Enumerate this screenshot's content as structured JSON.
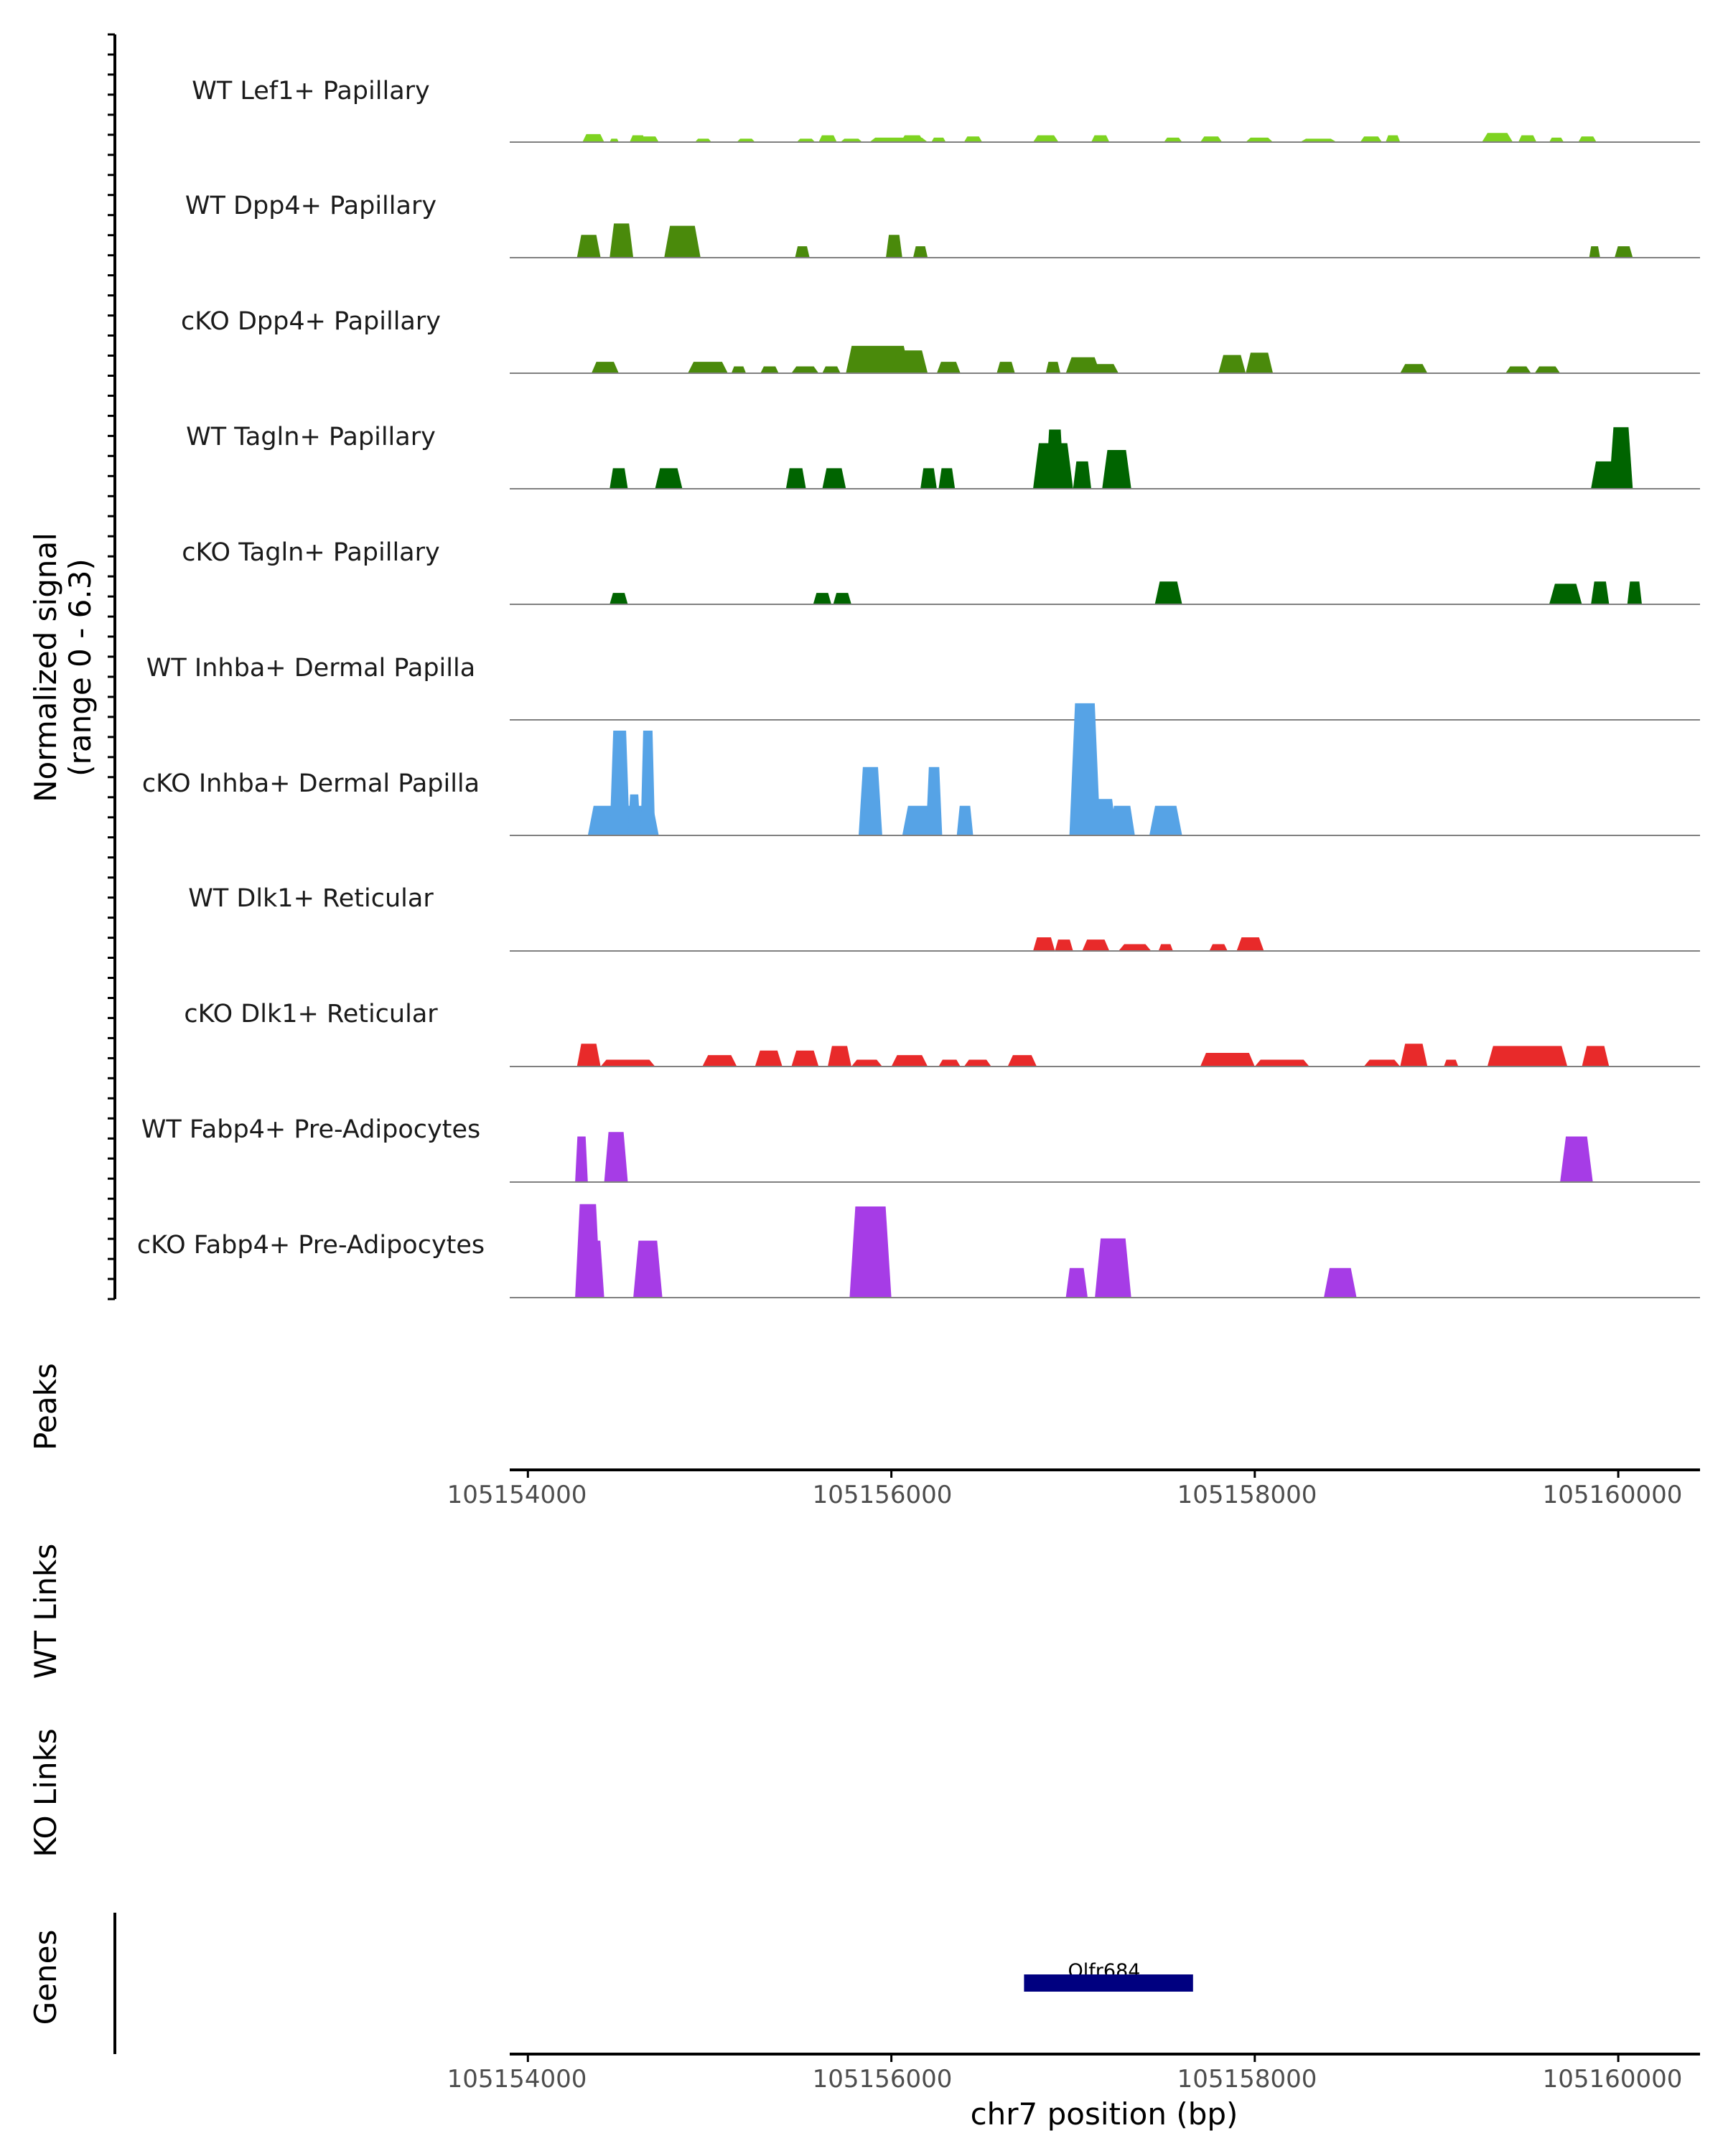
{
  "chart_data": {
    "type": "area",
    "title": "",
    "chromosome": "chr7",
    "xlabel": "chr7 position (bp)",
    "xlim": [
      105153900,
      105160450
    ],
    "xticks": [
      105154000,
      105156000,
      105158000,
      105160000
    ],
    "xtick_labels": [
      "105154000",
      "105156000",
      "105158000",
      "105160000"
    ],
    "ylabel_line1": "Normalized signal",
    "ylabel_line2": "(range 0 - 6.3)",
    "ylim": [
      0,
      6.3
    ],
    "panel_titles": {
      "peaks": "Peaks",
      "wt_links": "WT Links",
      "ko_links": "KO Links",
      "genes": "Genes"
    },
    "tracks": [
      {
        "name": "WT Lef1+ Papillary",
        "color": "#7ed321",
        "peaks": [
          [
            105154300,
            105154420,
            0.35
          ],
          [
            105154450,
            105154500,
            0.15
          ],
          [
            105154560,
            105154650,
            0.3
          ],
          [
            105154620,
            105154720,
            0.25
          ],
          [
            105154920,
            105155010,
            0.15
          ],
          [
            105155150,
            105155250,
            0.15
          ],
          [
            105155480,
            105155580,
            0.15
          ],
          [
            105155600,
            105155700,
            0.3
          ],
          [
            105155720,
            105155840,
            0.15
          ],
          [
            105155880,
            105156200,
            0.2
          ],
          [
            105156050,
            105156180,
            0.3
          ],
          [
            105156220,
            105156300,
            0.2
          ],
          [
            105156400,
            105156500,
            0.25
          ],
          [
            105156780,
            105156920,
            0.3
          ],
          [
            105157100,
            105157200,
            0.3
          ],
          [
            105157500,
            105157600,
            0.2
          ],
          [
            105157700,
            105157820,
            0.25
          ],
          [
            105157950,
            105158100,
            0.2
          ],
          [
            105158250,
            105158450,
            0.15
          ],
          [
            105158580,
            105158700,
            0.25
          ],
          [
            105158720,
            105158800,
            0.3
          ],
          [
            105159250,
            105159420,
            0.4
          ],
          [
            105159450,
            105159550,
            0.3
          ],
          [
            105159620,
            105159700,
            0.2
          ],
          [
            105159780,
            105159880,
            0.25
          ]
        ]
      },
      {
        "name": "WT Dpp4+ Papillary",
        "color": "#4a8a0b",
        "peaks": [
          [
            105154270,
            105154400,
            1.0
          ],
          [
            105154450,
            105154580,
            1.5
          ],
          [
            105154750,
            105154950,
            1.4
          ],
          [
            105155470,
            105155550,
            0.5
          ],
          [
            105155970,
            105156060,
            1.0
          ],
          [
            105156120,
            105156200,
            0.5
          ],
          [
            105159840,
            105159900,
            0.5
          ],
          [
            105159980,
            105160080,
            0.5
          ]
        ]
      },
      {
        "name": "cKO Dpp4+ Papillary",
        "color": "#4a8a0b",
        "peaks": [
          [
            105154350,
            105154500,
            0.5
          ],
          [
            105154880,
            105155100,
            0.5
          ],
          [
            105155120,
            105155200,
            0.3
          ],
          [
            105155280,
            105155380,
            0.3
          ],
          [
            105155450,
            105155600,
            0.3
          ],
          [
            105155620,
            105155720,
            0.3
          ],
          [
            105155750,
            105156100,
            1.2
          ],
          [
            105156000,
            105156200,
            1.0
          ],
          [
            105156250,
            105156380,
            0.5
          ],
          [
            105156580,
            105156680,
            0.5
          ],
          [
            105156850,
            105156930,
            0.5
          ],
          [
            105156960,
            105157150,
            0.7
          ],
          [
            105157100,
            105157250,
            0.4
          ],
          [
            105157800,
            105157950,
            0.8
          ],
          [
            105157950,
            105158100,
            0.9
          ],
          [
            105158800,
            105158950,
            0.4
          ],
          [
            105159380,
            105159520,
            0.3
          ],
          [
            105159540,
            105159680,
            0.3
          ]
        ]
      },
      {
        "name": "WT Tagln+ Papillary",
        "color": "#006400",
        "peaks": [
          [
            105154450,
            105154550,
            0.9
          ],
          [
            105154700,
            105154850,
            0.9
          ],
          [
            105155420,
            105155530,
            0.9
          ],
          [
            105155620,
            105155750,
            0.9
          ],
          [
            105156160,
            105156250,
            0.9
          ],
          [
            105156260,
            105156350,
            0.9
          ],
          [
            105156850,
            105156950,
            2.6
          ],
          [
            105156780,
            105157000,
            2.0
          ],
          [
            105157000,
            105157100,
            1.2
          ],
          [
            105157160,
            105157320,
            1.7
          ],
          [
            105159850,
            105160000,
            1.2
          ],
          [
            105159950,
            105160080,
            2.7
          ]
        ]
      },
      {
        "name": "cKO Tagln+ Papillary",
        "color": "#006400",
        "peaks": [
          [
            105154450,
            105154550,
            0.5
          ],
          [
            105155570,
            105155670,
            0.5
          ],
          [
            105155680,
            105155780,
            0.5
          ],
          [
            105157450,
            105157600,
            1.0
          ],
          [
            105159620,
            105159800,
            0.9
          ],
          [
            105159850,
            105159950,
            1.0
          ],
          [
            105160050,
            105160130,
            1.0
          ]
        ]
      },
      {
        "name": "WT Inhba+ Dermal Papilla",
        "color": "#56a3e6",
        "peaks": []
      },
      {
        "name": "cKO Inhba+ Dermal Papilla",
        "color": "#56a3e6",
        "peaks": [
          [
            105154330,
            105154720,
            1.3
          ],
          [
            105154450,
            105154560,
            4.6
          ],
          [
            105154620,
            105154700,
            4.6
          ],
          [
            105154550,
            105154620,
            1.8
          ],
          [
            105155820,
            105155950,
            3.0
          ],
          [
            105156060,
            105156260,
            1.3
          ],
          [
            105156190,
            105156280,
            3.0
          ],
          [
            105156360,
            105156450,
            1.3
          ],
          [
            105156980,
            105157150,
            5.8
          ],
          [
            105157100,
            105157240,
            1.6
          ],
          [
            105157200,
            105157340,
            1.3
          ],
          [
            105157420,
            105157600,
            1.3
          ]
        ]
      },
      {
        "name": "WT Dlk1+ Reticular",
        "color": "#e82a2a",
        "peaks": [
          [
            105156780,
            105156900,
            0.6
          ],
          [
            105156900,
            105157000,
            0.5
          ],
          [
            105157050,
            105157200,
            0.5
          ],
          [
            105157250,
            105157430,
            0.3
          ],
          [
            105157470,
            105157550,
            0.3
          ],
          [
            105157750,
            105157850,
            0.3
          ],
          [
            105157900,
            105158050,
            0.6
          ]
        ]
      },
      {
        "name": "cKO Dlk1+ Reticular",
        "color": "#e82a2a",
        "peaks": [
          [
            105154270,
            105154400,
            1.0
          ],
          [
            105154400,
            105154700,
            0.3
          ],
          [
            105154960,
            105155150,
            0.5
          ],
          [
            105155250,
            105155400,
            0.7
          ],
          [
            105155450,
            105155600,
            0.7
          ],
          [
            105155650,
            105155780,
            0.9
          ],
          [
            105155780,
            105155950,
            0.3
          ],
          [
            105156000,
            105156200,
            0.5
          ],
          [
            105156260,
            105156380,
            0.3
          ],
          [
            105156400,
            105156550,
            0.3
          ],
          [
            105156640,
            105156800,
            0.5
          ],
          [
            105157700,
            105158000,
            0.6
          ],
          [
            105158000,
            105158300,
            0.3
          ],
          [
            105158600,
            105158800,
            0.3
          ],
          [
            105158800,
            105158950,
            1.0
          ],
          [
            105159040,
            105159120,
            0.3
          ],
          [
            105159280,
            105159720,
            0.9
          ],
          [
            105159800,
            105159950,
            0.9
          ]
        ]
      },
      {
        "name": "WT Fabp4+ Pre-Adipocytes",
        "color": "#a63ce6",
        "peaks": [
          [
            105154260,
            105154330,
            2.0
          ],
          [
            105154420,
            105154550,
            2.2
          ],
          [
            105159680,
            105159860,
            2.0
          ]
        ]
      },
      {
        "name": "cKO Fabp4+ Pre-Adipocytes",
        "color": "#a63ce6",
        "peaks": [
          [
            105154260,
            105154400,
            4.1
          ],
          [
            105154300,
            105154420,
            2.5
          ],
          [
            105154580,
            105154740,
            2.5
          ],
          [
            105155770,
            105156000,
            4.0
          ],
          [
            105156960,
            105157080,
            1.3
          ],
          [
            105157120,
            105157320,
            2.6
          ],
          [
            105158380,
            105158560,
            1.3
          ]
        ]
      }
    ],
    "gene": {
      "name": "Olfr684",
      "start": 105156730,
      "end": 105157660,
      "color": "#000080"
    }
  }
}
